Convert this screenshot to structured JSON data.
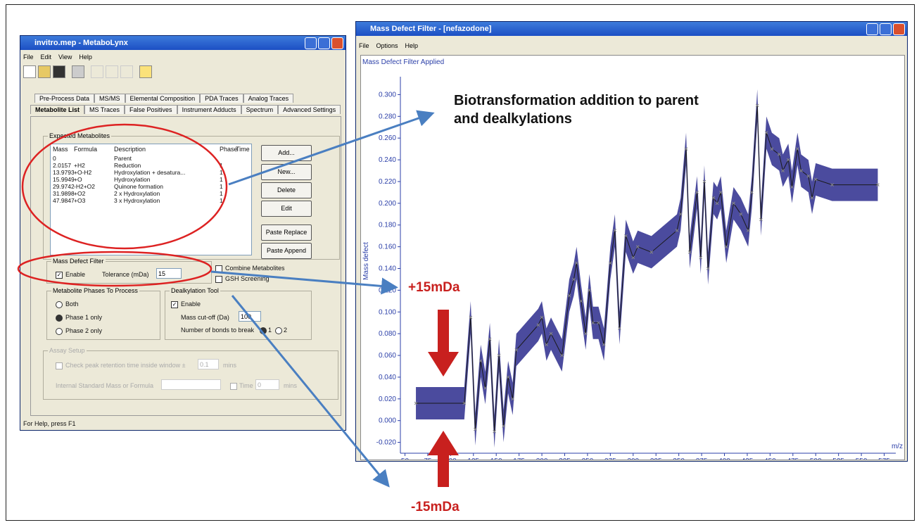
{
  "left_window": {
    "title": "invitro.mep - MetaboLynx",
    "menu": [
      "File",
      "Edit",
      "View",
      "Help"
    ],
    "tabs_row1": [
      "Pre-Process Data",
      "MS/MS",
      "Elemental Composition",
      "PDA Traces",
      "Analog Traces"
    ],
    "tabs_row2": [
      "Metabolite List",
      "MS Traces",
      "False Positives",
      "Instrument Adducts",
      "Spectrum",
      "Advanced Settings"
    ],
    "expected_metabolites": {
      "label": "Expected Metabolites",
      "columns": [
        "Mass",
        "Formula",
        "Description",
        "Phase",
        "Time"
      ],
      "rows": [
        [
          "0",
          null,
          "Parent",
          null,
          null
        ],
        [
          "2.0157",
          "+H2",
          "Reduction",
          "1",
          null
        ],
        [
          "13.9793",
          "+O-H2",
          "Hydroxylation + desatura...",
          "1",
          null
        ],
        [
          "15.9949",
          "+O",
          "Hydroxylation",
          "1",
          null
        ],
        [
          "29.9742",
          "-H2+O2",
          "Quinone formation",
          "1",
          null
        ],
        [
          "31.9898",
          "+O2",
          "2 x Hydroxylation",
          "1",
          null
        ],
        [
          "47.9847",
          "+O3",
          "3 x Hydroxylation",
          "1",
          null
        ]
      ]
    },
    "buttons": [
      "Add...",
      "New...",
      "Delete",
      "Edit",
      "Paste Replace",
      "Paste Append"
    ],
    "mass_defect_filter": {
      "label": "Mass Defect Filter",
      "enable": "Enable",
      "tolerance_label": "Tolerance (mDa)",
      "tolerance": "15"
    },
    "combine_metabolites": "Combine Metabolites",
    "gsh_screening": "GSH Screening",
    "phases": {
      "label": "Metabolite Phases To Process",
      "options": [
        "Both",
        "Phase 1 only",
        "Phase 2 only"
      ]
    },
    "dealkylation": {
      "label": "Dealkylation Tool",
      "enable": "Enable",
      "cutoff_label": "Mass cut-off (Da)",
      "cutoff": "100",
      "bonds_label": "Number of bonds to break",
      "bond_options": [
        "1",
        "2"
      ]
    },
    "assay": {
      "label": "Assay Setup",
      "retention_label": "Check peak retention time inside window ±",
      "retention": "0.1",
      "retention_unit": "mins",
      "standard_label": "Internal Standard Mass or Formula",
      "time_label": "Time",
      "time": "0",
      "time_unit": "mins"
    },
    "status": "For Help, press F1"
  },
  "right_window": {
    "title": "Mass Defect Filter - [nefazodone]",
    "menu": [
      "File",
      "Options",
      "Help"
    ],
    "chart_data": {
      "type": "line",
      "title": "Mass Defect Filter Applied",
      "x_label": "m/z",
      "y_label": "Mass defect",
      "color": "#3c3c96",
      "line_color": "#1a1a1a",
      "x": [
        62,
        115,
        122,
        127,
        133,
        138,
        143,
        148,
        153,
        158,
        163,
        168,
        172,
        196,
        200,
        205,
        210,
        222,
        230,
        235,
        238,
        243,
        248,
        252,
        256,
        262,
        268,
        275,
        280,
        285,
        292,
        300,
        305,
        320,
        348,
        352,
        358,
        362,
        370,
        374,
        378,
        382,
        388,
        392,
        396,
        402,
        410,
        418,
        426,
        430,
        436,
        440,
        446,
        452,
        460,
        464,
        470,
        474,
        480,
        484,
        492,
        496,
        500,
        518,
        568
      ],
      "values": [
        0.016,
        0.016,
        0.095,
        -0.008,
        0.055,
        0.03,
        0.075,
        -0.01,
        0.06,
        -0.005,
        0.04,
        0.02,
        0.065,
        0.088,
        0.095,
        0.07,
        0.08,
        0.06,
        0.115,
        0.13,
        0.145,
        0.11,
        0.08,
        0.12,
        0.09,
        0.09,
        0.07,
        0.145,
        0.175,
        0.085,
        0.17,
        0.15,
        0.16,
        0.155,
        0.175,
        0.19,
        0.25,
        0.155,
        0.21,
        0.15,
        0.22,
        0.14,
        0.205,
        0.2,
        0.21,
        0.16,
        0.2,
        0.19,
        0.175,
        0.21,
        0.29,
        0.185,
        0.265,
        0.25,
        0.245,
        0.23,
        0.24,
        0.215,
        0.25,
        0.23,
        0.225,
        0.205,
        0.222,
        0.217,
        0.217
      ],
      "xlim": [
        45,
        580
      ],
      "xticks": [
        50,
        75,
        100,
        125,
        150,
        175,
        200,
        225,
        250,
        275,
        300,
        325,
        350,
        375,
        400,
        425,
        450,
        475,
        500,
        525,
        550,
        575
      ],
      "ylim": [
        -0.03,
        0.31
      ],
      "yticks": [
        {
          "value": -0.02,
          "label": "-0.020"
        },
        {
          "value": 0,
          "label": "0.000"
        },
        {
          "value": 0.02,
          "label": "0.020"
        },
        {
          "value": 0.04,
          "label": "0.040"
        },
        {
          "value": 0.06,
          "label": "0.060"
        },
        {
          "value": 0.08,
          "label": "0.080"
        },
        {
          "value": 0.1,
          "label": "0.100"
        },
        {
          "value": 0.12,
          "label": "0.120"
        },
        {
          "value": 0.14,
          "label": "0.140"
        },
        {
          "value": 0.16,
          "label": "0.160"
        },
        {
          "value": 0.18,
          "label": "0.180"
        },
        {
          "value": 0.2,
          "label": "0.200"
        },
        {
          "value": 0.22,
          "label": "0.220"
        },
        {
          "value": 0.24,
          "label": "0.240"
        },
        {
          "value": 0.26,
          "label": "0.260"
        },
        {
          "value": 0.28,
          "label": "0.280"
        },
        {
          "value": 0.3,
          "label": "0.300"
        }
      ]
    }
  },
  "annotations": {
    "biotransformation": "Biotransformation addition to parent and dealkylations",
    "plus": "+15mDa",
    "minus": "-15mDa"
  }
}
